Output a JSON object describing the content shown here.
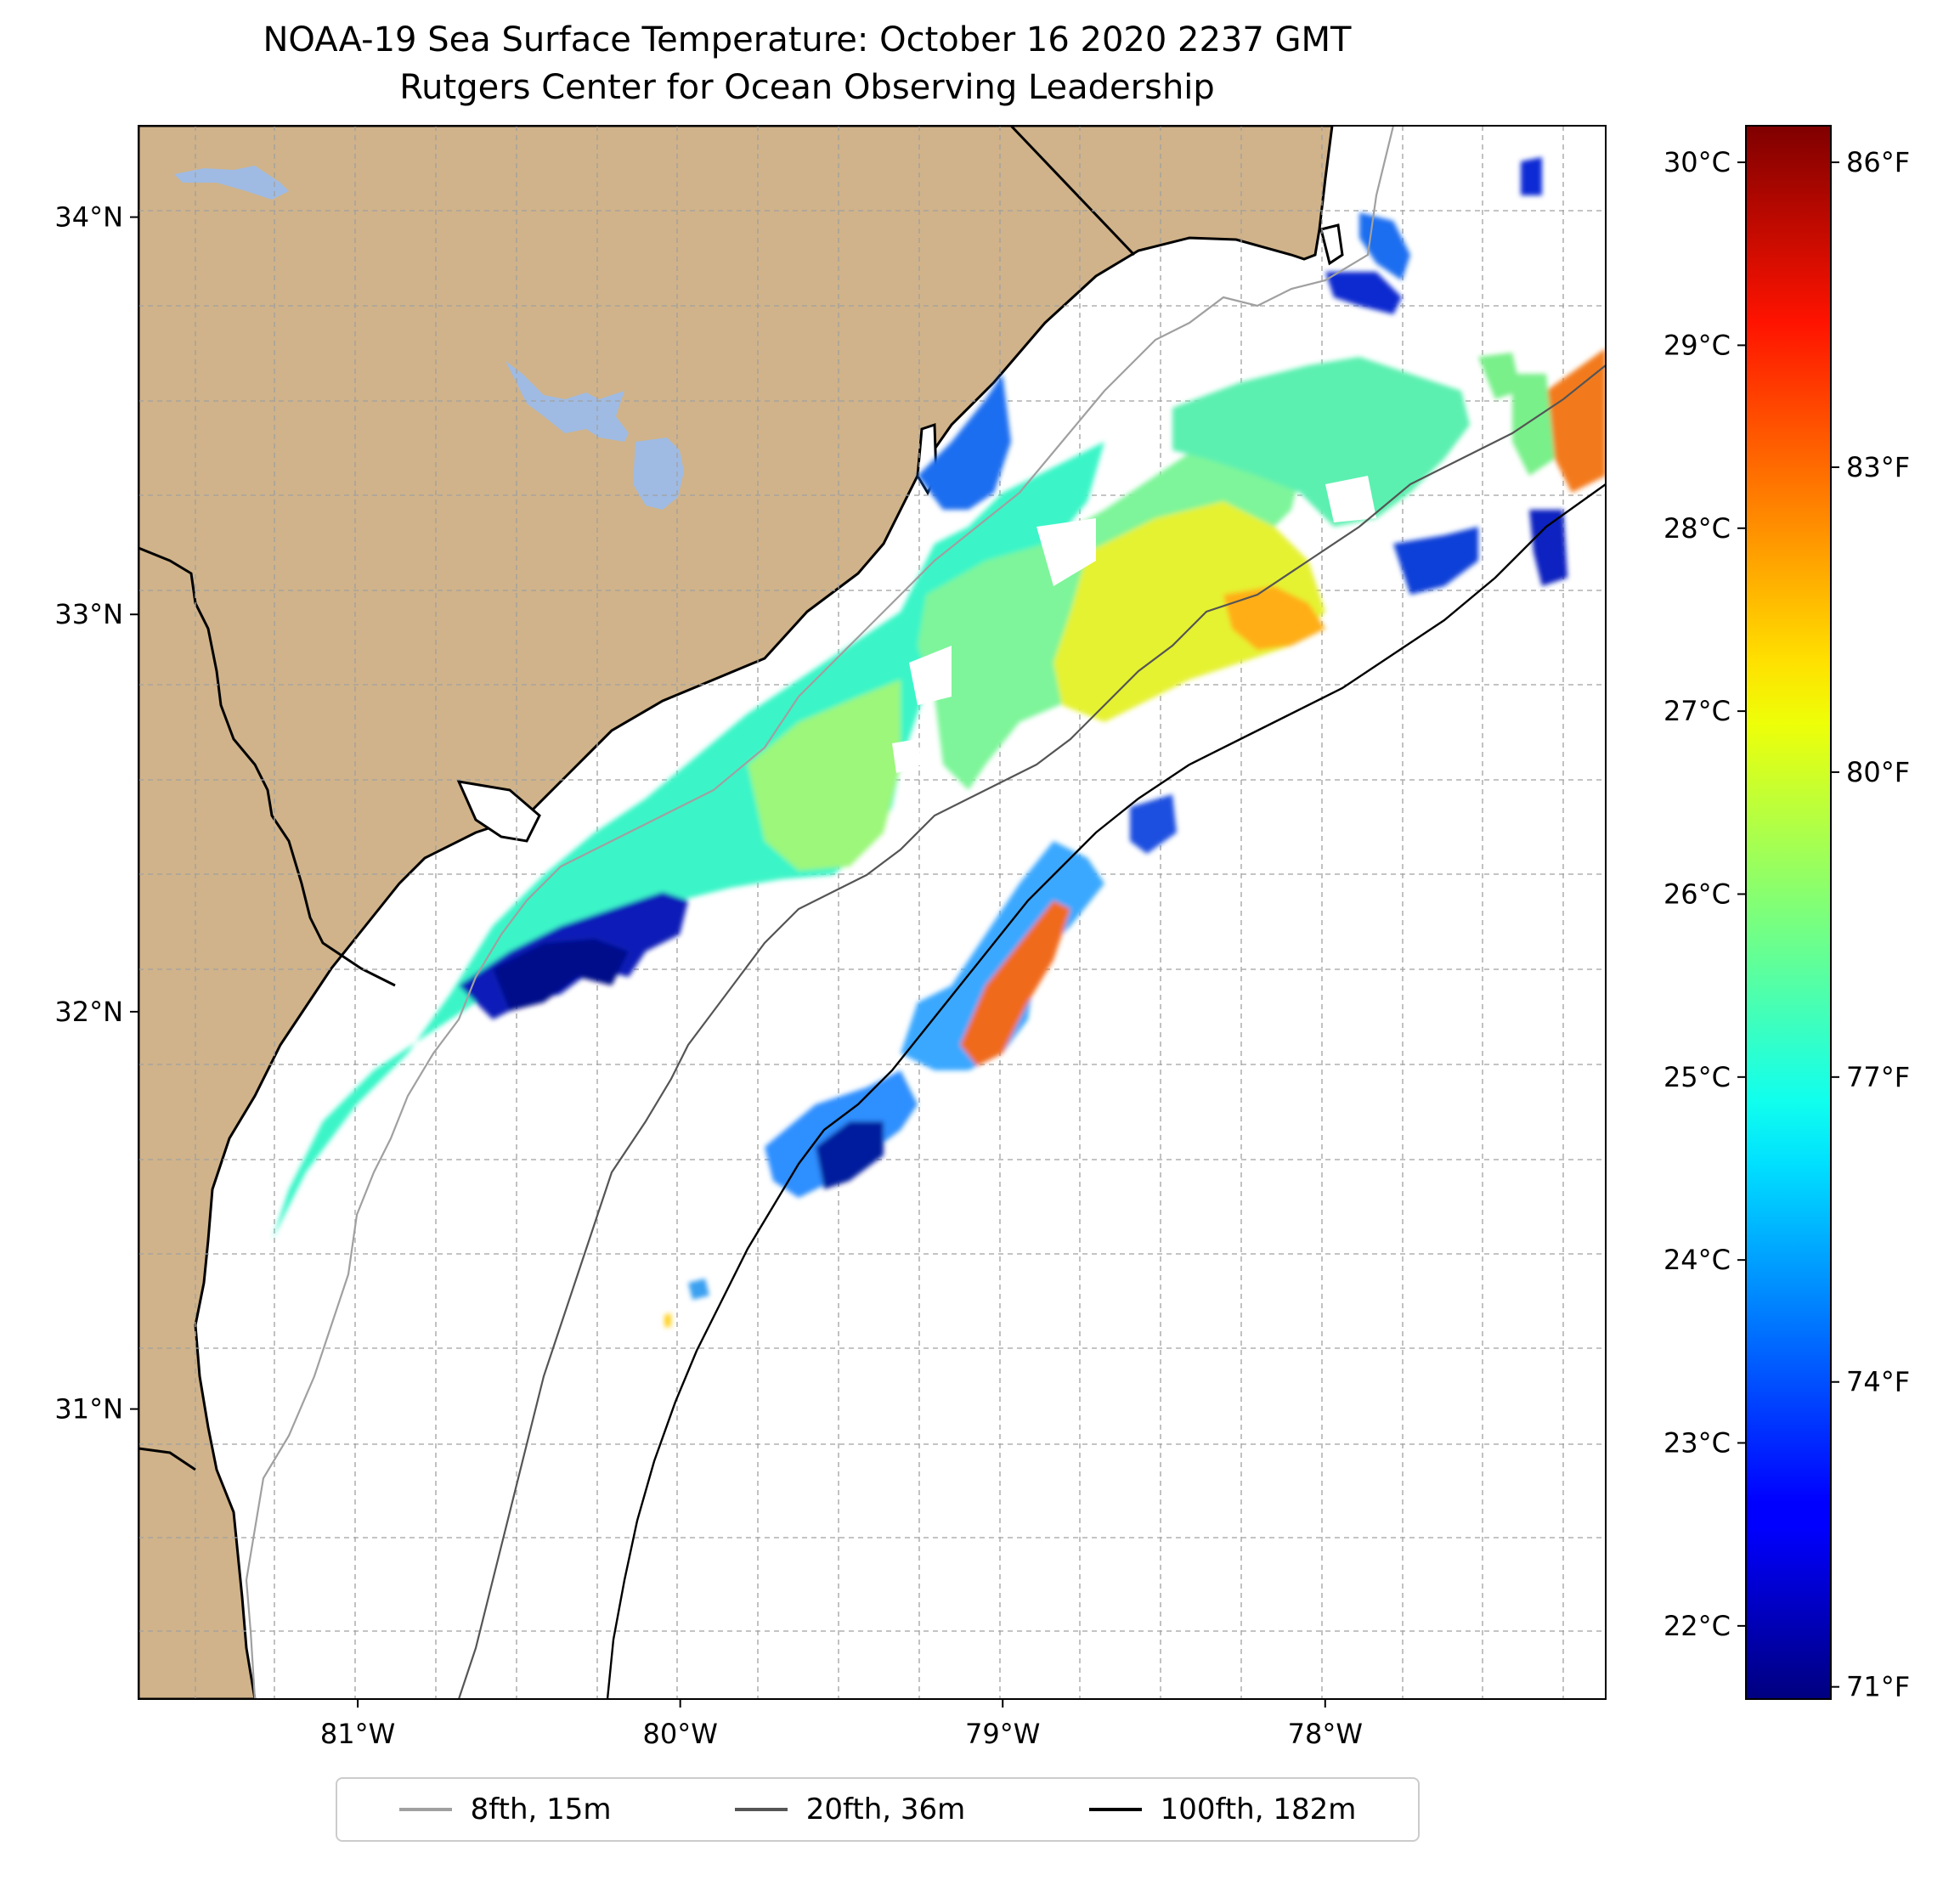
{
  "title": "NOAA-19 Sea Surface Temperature: October 16 2020 2237 GMT",
  "subtitle": "Rutgers Center for Ocean Observing Leadership",
  "map": {
    "lon_range": [
      -81.68,
      -77.13
    ],
    "lat_range": [
      30.27,
      34.23
    ],
    "lon_ticks": [
      {
        "value": -81,
        "label": "81°W"
      },
      {
        "value": -80,
        "label": "80°W"
      },
      {
        "value": -79,
        "label": "79°W"
      },
      {
        "value": -78,
        "label": "78°W"
      }
    ],
    "lat_ticks": [
      {
        "value": 34,
        "label": "34°N"
      },
      {
        "value": 33,
        "label": "33°N"
      },
      {
        "value": 32,
        "label": "32°N"
      },
      {
        "value": 31,
        "label": "31°N"
      }
    ],
    "gridlines": true,
    "colors": {
      "land": "#d0b38a",
      "lakes": "#9fbbe3",
      "ocean": "#ffffff"
    }
  },
  "colorbar": {
    "colormap": "jet",
    "range_celsius": [
      21.6,
      30.2
    ],
    "celsius_ticks": [
      {
        "value": 22,
        "label": "22°C"
      },
      {
        "value": 23,
        "label": "23°C"
      },
      {
        "value": 24,
        "label": "24°C"
      },
      {
        "value": 25,
        "label": "25°C"
      },
      {
        "value": 26,
        "label": "26°C"
      },
      {
        "value": 27,
        "label": "27°C"
      },
      {
        "value": 28,
        "label": "28°C"
      },
      {
        "value": 29,
        "label": "29°C"
      },
      {
        "value": 30,
        "label": "30°C"
      }
    ],
    "fahrenheit_ticks": [
      {
        "value": 71,
        "label": "71°F"
      },
      {
        "value": 74,
        "label": "74°F"
      },
      {
        "value": 77,
        "label": "77°F"
      },
      {
        "value": 80,
        "label": "80°F"
      },
      {
        "value": 83,
        "label": "83°F"
      },
      {
        "value": 86,
        "label": "86°F"
      }
    ]
  },
  "legend": {
    "placement": "bottom",
    "items": [
      {
        "label": "8fth, 15m",
        "color": "#a0a0a0"
      },
      {
        "label": "20fth, 36m",
        "color": "#555555"
      },
      {
        "label": "100fth, 182m",
        "color": "#000000"
      }
    ]
  }
}
